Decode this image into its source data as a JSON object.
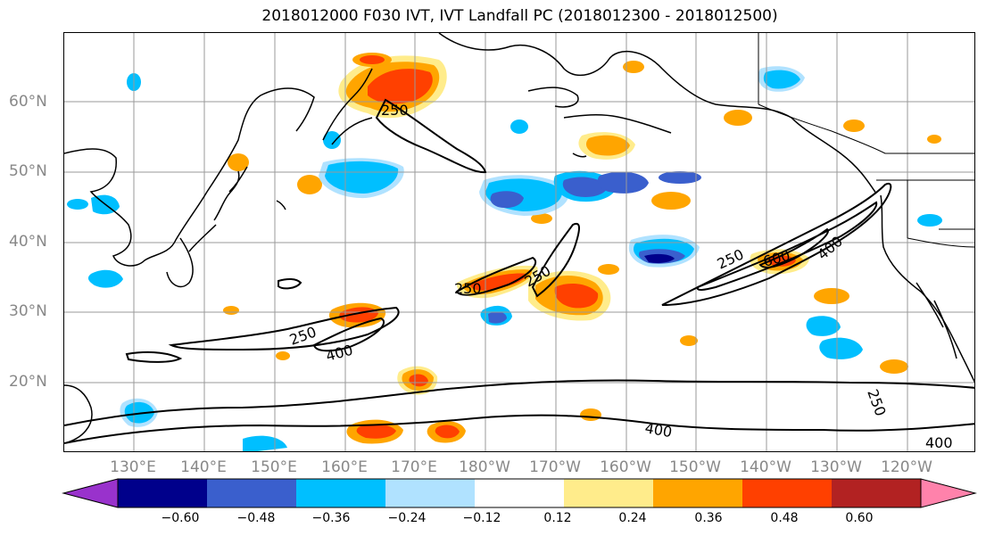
{
  "title": "2018012000 F030 IVT, IVT Landfall PC (2018012300 - 2018012500)",
  "lat_labels": [
    "60°N",
    "50°N",
    "40°N",
    "30°N",
    "20°N"
  ],
  "lon_labels": [
    "130°E",
    "140°E",
    "150°E",
    "160°E",
    "170°E",
    "180°W",
    "170°W",
    "160°W",
    "150°W",
    "140°W",
    "130°W",
    "120°W"
  ],
  "contour_labels": [
    "250",
    "250",
    "250",
    "250",
    "250",
    "400",
    "400",
    "600",
    "400",
    "250",
    "400"
  ],
  "colorbar": {
    "ticks": [
      "−0.60",
      "−0.48",
      "−0.36",
      "−0.24",
      "−0.12",
      "0.12",
      "0.24",
      "0.36",
      "0.48",
      "0.60"
    ],
    "colors": [
      "#9932cc",
      "#00008b",
      "#3a5fcd",
      "#00bfff",
      "#b0e2ff",
      "#ffffff",
      "#ffec8b",
      "#ffa500",
      "#ff4000",
      "#b22222",
      "#ff82ab"
    ]
  },
  "palette": {
    "neg_strong": "#3a5fcd",
    "neg": "#00bfff",
    "neg_weak": "#b0e2ff",
    "pos_weak": "#ffec8b",
    "pos": "#ffa500",
    "pos_strong": "#ff4000",
    "pos_max": "#b22222"
  }
}
